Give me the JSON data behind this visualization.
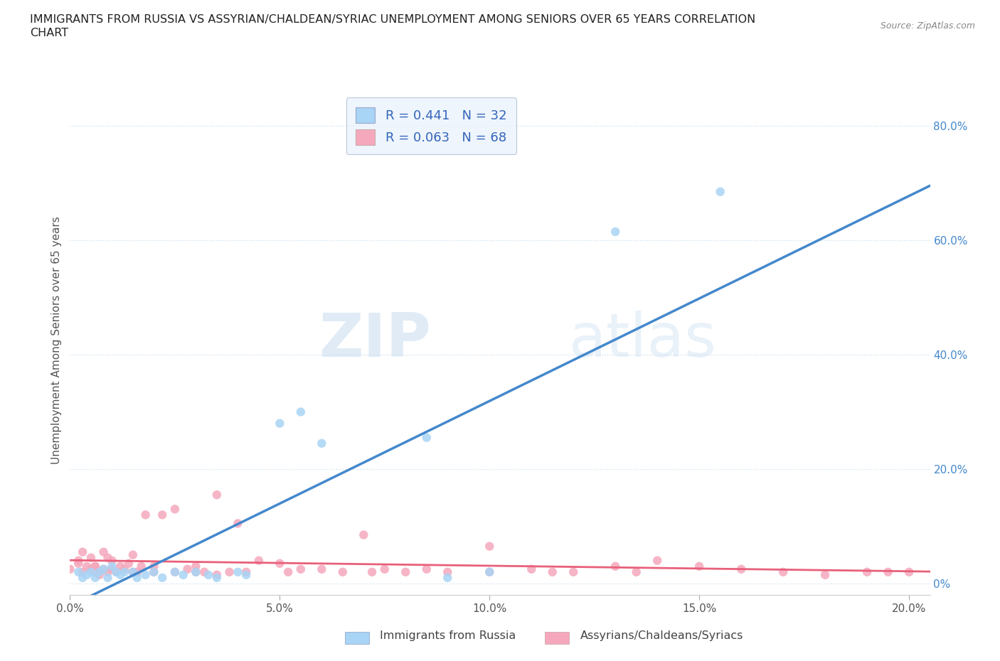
{
  "title_line1": "IMMIGRANTS FROM RUSSIA VS ASSYRIAN/CHALDEAN/SYRIAC UNEMPLOYMENT AMONG SENIORS OVER 65 YEARS CORRELATION",
  "title_line2": "CHART",
  "source": "Source: ZipAtlas.com",
  "ylabel": "Unemployment Among Seniors over 65 years",
  "xlim": [
    0.0,
    0.205
  ],
  "ylim": [
    -0.02,
    0.87
  ],
  "xticks": [
    0.0,
    0.05,
    0.1,
    0.15,
    0.2
  ],
  "xtick_labels": [
    "0.0%",
    "5.0%",
    "10.0%",
    "15.0%",
    "20.0%"
  ],
  "yticks": [
    0.0,
    0.2,
    0.4,
    0.6,
    0.8
  ],
  "ytick_labels": [
    "0%",
    "20.0%",
    "40.0%",
    "60.0%",
    "80.0%"
  ],
  "blue_color": "#A8D4F5",
  "pink_color": "#F5A8BC",
  "blue_line_color": "#4488CC",
  "pink_line_color": "#E8607A",
  "grid_color": "#C8DFF0",
  "R_blue": 0.441,
  "N_blue": 32,
  "R_pink": 0.063,
  "N_pink": 68,
  "blue_scatter_x": [
    0.002,
    0.003,
    0.004,
    0.005,
    0.006,
    0.007,
    0.008,
    0.009,
    0.01,
    0.011,
    0.012,
    0.013,
    0.015,
    0.016,
    0.018,
    0.02,
    0.022,
    0.025,
    0.027,
    0.03,
    0.033,
    0.035,
    0.04,
    0.042,
    0.05,
    0.055,
    0.06,
    0.085,
    0.09,
    0.1,
    0.13,
    0.155
  ],
  "blue_scatter_y": [
    0.02,
    0.01,
    0.015,
    0.02,
    0.01,
    0.02,
    0.025,
    0.01,
    0.03,
    0.02,
    0.015,
    0.02,
    0.02,
    0.01,
    0.015,
    0.02,
    0.01,
    0.02,
    0.015,
    0.02,
    0.015,
    0.01,
    0.02,
    0.015,
    0.28,
    0.3,
    0.245,
    0.255,
    0.01,
    0.02,
    0.615,
    0.685
  ],
  "pink_scatter_x": [
    0.0,
    0.002,
    0.003,
    0.003,
    0.004,
    0.005,
    0.005,
    0.006,
    0.006,
    0.007,
    0.008,
    0.008,
    0.009,
    0.01,
    0.01,
    0.011,
    0.012,
    0.013,
    0.014,
    0.015,
    0.015,
    0.016,
    0.017,
    0.018,
    0.02,
    0.02,
    0.022,
    0.025,
    0.025,
    0.028,
    0.03,
    0.03,
    0.032,
    0.035,
    0.035,
    0.038,
    0.04,
    0.042,
    0.045,
    0.05,
    0.052,
    0.055,
    0.06,
    0.065,
    0.07,
    0.072,
    0.075,
    0.08,
    0.085,
    0.09,
    0.1,
    0.1,
    0.11,
    0.115,
    0.12,
    0.13,
    0.135,
    0.14,
    0.15,
    0.16,
    0.17,
    0.18,
    0.19,
    0.195,
    0.2,
    0.002,
    0.006,
    0.009
  ],
  "pink_scatter_y": [
    0.025,
    0.035,
    0.055,
    0.02,
    0.03,
    0.045,
    0.025,
    0.02,
    0.03,
    0.015,
    0.025,
    0.055,
    0.02,
    0.04,
    0.025,
    0.02,
    0.03,
    0.025,
    0.035,
    0.05,
    0.02,
    0.02,
    0.03,
    0.12,
    0.02,
    0.03,
    0.12,
    0.13,
    0.02,
    0.025,
    0.02,
    0.03,
    0.02,
    0.015,
    0.155,
    0.02,
    0.105,
    0.02,
    0.04,
    0.035,
    0.02,
    0.025,
    0.025,
    0.02,
    0.085,
    0.02,
    0.025,
    0.02,
    0.025,
    0.02,
    0.02,
    0.065,
    0.025,
    0.02,
    0.02,
    0.03,
    0.02,
    0.04,
    0.03,
    0.025,
    0.02,
    0.015,
    0.02,
    0.02,
    0.02,
    0.04,
    0.03,
    0.045
  ],
  "watermark_zip": "ZIP",
  "watermark_atlas": "atlas",
  "background_color": "#FFFFFF",
  "legend_facecolor": "#EBF3FC",
  "legend_edgecolor": "#AABBD0",
  "legend_label_color": "#3366BB",
  "legend_label_blue": "Immigrants from Russia",
  "legend_label_pink": "Assyrians/Chaldeans/Syriacs"
}
